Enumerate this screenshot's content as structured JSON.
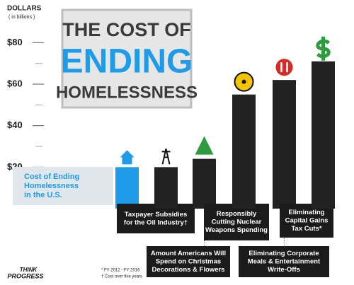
{
  "chart_data": {
    "type": "bar",
    "title": [
      "THE COST OF",
      "ENDING",
      "HOMELESSNESS"
    ],
    "y_axis_title": [
      "DOLLARS",
      "( in billions )"
    ],
    "categories": [
      [
        "Cost of Ending",
        "Homelessness",
        "in the U.S."
      ],
      [
        "Taxpayer Subsidies",
        "for the Oil Industry†"
      ],
      [
        "Amount Americans Will",
        "Spend on Christmas",
        "Decorations & Flowers"
      ],
      [
        "Responsibly",
        "Cutting Nuclear",
        "Weapons Spending"
      ],
      [
        "Eliminating Corporate",
        "Meals & Entertainment",
        "Write-Offs"
      ],
      [
        "Eliminating",
        "Capital Gains",
        "Tax Cuts*"
      ]
    ],
    "values": [
      20,
      20,
      24,
      55,
      62,
      71
    ],
    "colors": [
      "#1e9be9",
      "#222222",
      "#222222",
      "#222222",
      "#222222",
      "#222222"
    ],
    "ylim": [
      0,
      90
    ],
    "yticks": [
      {
        "value": 20,
        "label": "$20"
      },
      {
        "value": 40,
        "label": "$40"
      },
      {
        "value": 60,
        "label": "$60"
      },
      {
        "value": 80,
        "label": "$80"
      }
    ],
    "footnotes": [
      "* FY 2012 - FY 2016",
      "† Cost over five years"
    ],
    "logo": [
      "THINK",
      "PROGRESS"
    ]
  }
}
